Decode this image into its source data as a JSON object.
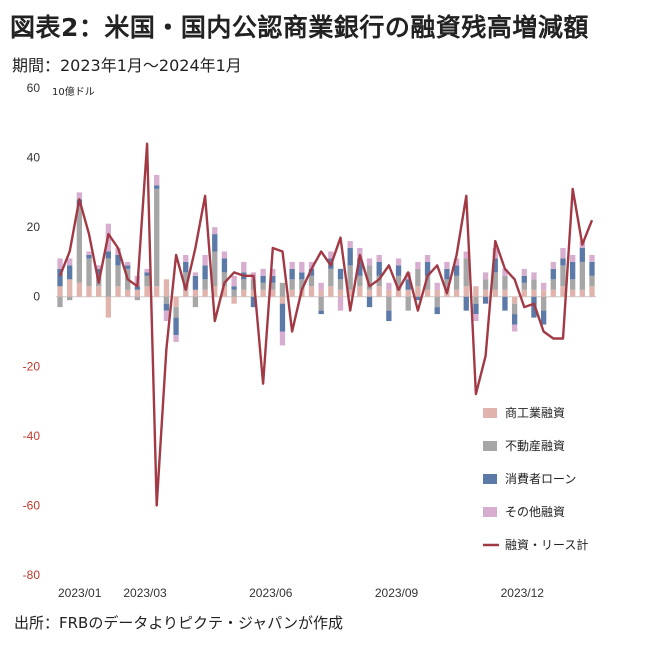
{
  "title": "図表2：米国・国内公認商業銀行の融資残高増減額",
  "subtitle": "期間：2023年1月〜2024年1月",
  "unit": "10億ドル",
  "source": "出所：FRBのデータよりピクテ・ジャパンが作成",
  "chart_data": {
    "type": "bar",
    "stacked": true,
    "ylim": [
      -80,
      60
    ],
    "yticks": [
      60,
      40,
      20,
      0,
      -20,
      -40,
      -60,
      -80
    ],
    "negative_tick_color": "#c0392b",
    "x_tick_labels": [
      {
        "label": "2023/01",
        "index": 0
      },
      {
        "label": "2023/03",
        "index": 9
      },
      {
        "label": "2023/06",
        "index": 22
      },
      {
        "label": "2023/09",
        "index": 35
      },
      {
        "label": "2023/12",
        "index": 48
      }
    ],
    "n_periods": 56,
    "series": [
      {
        "name": "商工業融資",
        "color": "#e0b4ac",
        "values": [
          3,
          5,
          4,
          3,
          3,
          -6,
          3,
          2,
          2,
          3,
          3,
          5,
          -3,
          2,
          2,
          2,
          3,
          3,
          -2,
          2,
          2,
          2,
          2,
          -2,
          2,
          2,
          3,
          2,
          3,
          2,
          2,
          3,
          2,
          3,
          2,
          2,
          2,
          3,
          2,
          2,
          2,
          2,
          3,
          3,
          2,
          2,
          2,
          -2,
          2,
          2,
          2,
          2,
          3,
          2,
          2,
          3
        ]
      },
      {
        "name": "不動産融資",
        "color": "#a6a6a6",
        "values": [
          -3,
          -1,
          22,
          8,
          3,
          11,
          6,
          6,
          -1,
          3,
          28,
          -2,
          -3,
          5,
          -3,
          3,
          10,
          4,
          2,
          3,
          3,
          2,
          2,
          4,
          3,
          3,
          3,
          -4,
          5,
          3,
          7,
          3,
          7,
          3,
          -4,
          4,
          -4,
          5,
          4,
          -3,
          3,
          4,
          8,
          -2,
          3,
          5,
          4,
          -3,
          2,
          3,
          -4,
          3,
          6,
          3,
          8,
          3
        ]
      },
      {
        "name": "消費者ローン",
        "color": "#5b7aa8",
        "values": [
          5,
          4,
          2,
          1,
          2,
          2,
          3,
          1,
          1,
          1,
          1,
          -2,
          -5,
          3,
          4,
          4,
          5,
          4,
          1,
          2,
          -3,
          2,
          2,
          -8,
          3,
          2,
          2,
          -1,
          3,
          3,
          5,
          5,
          -3,
          4,
          -3,
          3,
          3,
          -1,
          4,
          -2,
          3,
          3,
          -4,
          -3,
          -2,
          4,
          -4,
          -3,
          2,
          -6,
          -4,
          3,
          2,
          5,
          4,
          4
        ]
      },
      {
        "name": "その他融資",
        "color": "#d8aed0",
        "values": [
          3,
          2,
          2,
          1,
          1,
          8,
          2,
          1,
          3,
          1,
          3,
          -3,
          -2,
          2,
          1,
          3,
          2,
          2,
          3,
          3,
          2,
          2,
          2,
          -4,
          2,
          3,
          2,
          2,
          2,
          -4,
          2,
          3,
          2,
          2,
          2,
          2,
          2,
          2,
          2,
          2,
          2,
          2,
          2,
          -2,
          2,
          3,
          2,
          -2,
          2,
          2,
          2,
          2,
          3,
          2,
          2,
          2
        ]
      },
      {
        "name": "融資・リース計",
        "color": "#a23a45",
        "type": "line",
        "values": [
          6,
          13,
          28,
          18,
          4,
          18,
          14,
          5,
          3,
          44,
          -60,
          -15,
          12,
          2,
          14,
          29,
          -7,
          4,
          7,
          6,
          6,
          -25,
          14,
          13,
          -10,
          2,
          8,
          13,
          9,
          17,
          -4,
          12,
          3,
          5,
          9,
          2,
          7,
          -4,
          6,
          9,
          1,
          12,
          29,
          -28,
          -17,
          16,
          8,
          5,
          -3,
          -2,
          -10,
          -12,
          -12,
          31,
          15,
          22
        ]
      }
    ],
    "legend": [
      {
        "label": "商工業融資",
        "color": "#e0b4ac",
        "kind": "bar"
      },
      {
        "label": "不動産融資",
        "color": "#a6a6a6",
        "kind": "bar"
      },
      {
        "label": "消費者ローン",
        "color": "#5b7aa8",
        "kind": "bar"
      },
      {
        "label": "その他融資",
        "color": "#d8aed0",
        "kind": "bar"
      },
      {
        "label": "融資・リース計",
        "color": "#a23a45",
        "kind": "line"
      }
    ],
    "legend_position": "bottom-right",
    "grid": false
  }
}
